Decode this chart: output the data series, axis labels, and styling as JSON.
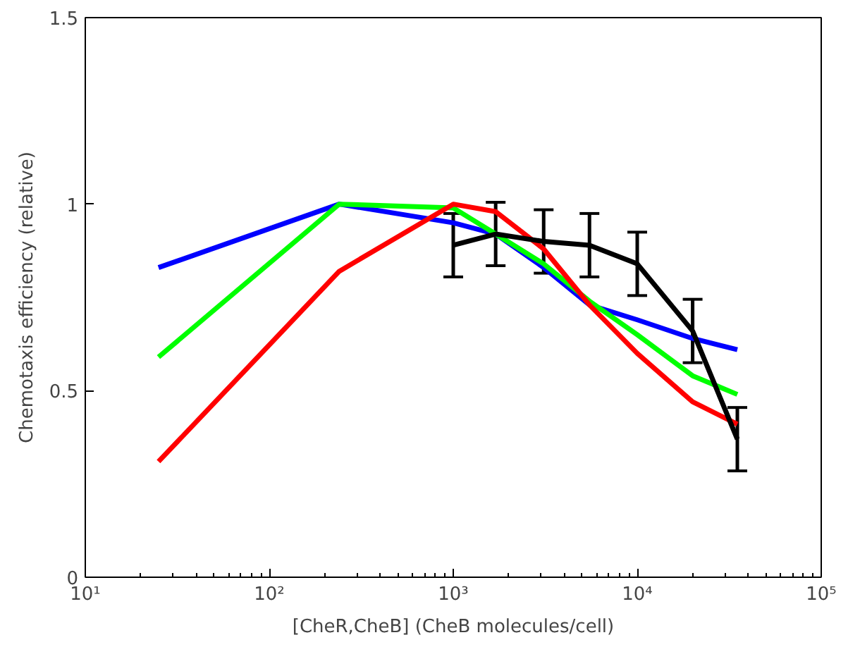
{
  "chart_data": {
    "type": "line",
    "xlabel": "[CheR,CheB] (CheB molecules/cell)",
    "ylabel": "Chemotaxis efficiency (relative)",
    "log": "x",
    "grid": false,
    "marker": "none",
    "line_style": "solid",
    "xlim": [
      10,
      100000
    ],
    "ylim": [
      0,
      1.5
    ],
    "xticks": [
      {
        "value": 10,
        "label": "10¹"
      },
      {
        "value": 100,
        "label": "10²"
      },
      {
        "value": 1000,
        "label": "10³"
      },
      {
        "value": 10000,
        "label": "10⁴"
      },
      {
        "value": 100000,
        "label": "10⁵"
      }
    ],
    "yticks": [
      0,
      0.5,
      1,
      1.5
    ],
    "series": [
      {
        "color": "#0000ff",
        "x": [
          25,
          240,
          1000,
          1700,
          3100,
          5500,
          10000,
          20000,
          35000
        ],
        "values": [
          0.83,
          1.0,
          0.95,
          0.92,
          0.83,
          0.73,
          0.69,
          0.64,
          0.61
        ]
      },
      {
        "color": "#00ff00",
        "x": [
          25,
          240,
          1000,
          1700,
          3100,
          5500,
          10000,
          20000,
          35000
        ],
        "values": [
          0.59,
          1.0,
          0.99,
          0.92,
          0.84,
          0.74,
          0.65,
          0.54,
          0.49
        ]
      },
      {
        "color": "#ff0000",
        "x": [
          25,
          240,
          1000,
          1700,
          3100,
          5500,
          10000,
          20000,
          35000
        ],
        "values": [
          0.31,
          0.82,
          1.0,
          0.98,
          0.88,
          0.73,
          0.6,
          0.47,
          0.41
        ]
      },
      {
        "color": "#000000",
        "x": [
          1000,
          1700,
          3100,
          5500,
          10000,
          20000,
          35000
        ],
        "values": [
          0.89,
          0.92,
          0.9,
          0.89,
          0.84,
          0.66,
          0.37
        ],
        "errors": [
          0.085,
          0.085,
          0.085,
          0.085,
          0.085,
          0.085,
          0.085
        ]
      }
    ]
  }
}
